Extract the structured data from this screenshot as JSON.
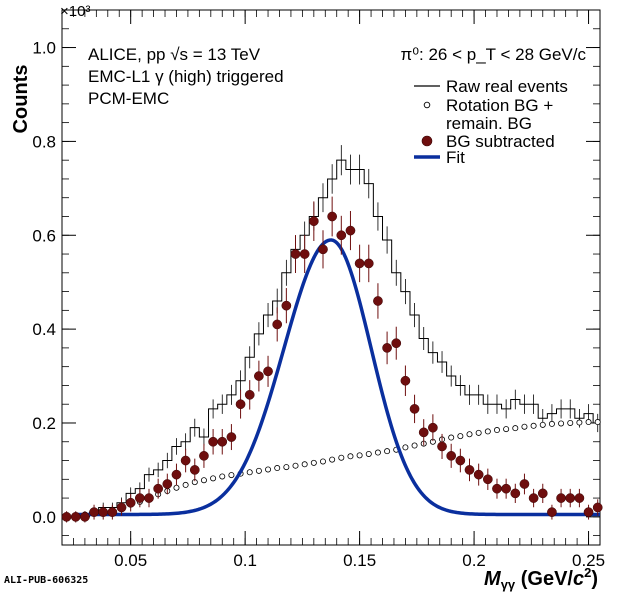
{
  "chart_data": {
    "type": "line",
    "xlabel": "M_γγ (GeV/c²)",
    "ylabel": "Counts",
    "y_multiplier": "×10³",
    "xlim": [
      0.02,
      0.255
    ],
    "ylim": [
      -0.06,
      1.08
    ],
    "x_ticks": [
      "0.05",
      "0.1",
      "0.15",
      "0.2",
      "0.25"
    ],
    "y_ticks": [
      "0.0",
      "0.2",
      "0.4",
      "0.6",
      "0.8",
      "1.0"
    ],
    "annotations": {
      "experiment": "ALICE, pp  √s = 13 TeV",
      "trigger": "EMC-L1 γ (high) triggered",
      "method": "PCM-EMC",
      "pt_range": "π⁰:  26 < p_T <  28 GeV/c"
    },
    "legend": {
      "position": "top-right",
      "entries": [
        {
          "label": "Raw real events",
          "style": "line"
        },
        {
          "label": "Rotation BG +",
          "label2": "remain. BG",
          "style": "open-circle"
        },
        {
          "label": "BG subtracted",
          "style": "filled-circle"
        },
        {
          "label": "Fit",
          "style": "thick-line"
        }
      ]
    },
    "bin_width": 0.004,
    "series": [
      {
        "name": "Raw real events",
        "x": [
          0.022,
          0.026,
          0.03,
          0.034,
          0.038,
          0.042,
          0.046,
          0.05,
          0.054,
          0.058,
          0.062,
          0.066,
          0.07,
          0.074,
          0.078,
          0.082,
          0.086,
          0.09,
          0.094,
          0.098,
          0.102,
          0.106,
          0.11,
          0.114,
          0.118,
          0.122,
          0.126,
          0.13,
          0.134,
          0.138,
          0.142,
          0.146,
          0.15,
          0.154,
          0.158,
          0.162,
          0.166,
          0.17,
          0.174,
          0.178,
          0.182,
          0.186,
          0.19,
          0.194,
          0.198,
          0.202,
          0.206,
          0.21,
          0.214,
          0.218,
          0.222,
          0.226,
          0.23,
          0.234,
          0.238,
          0.242,
          0.246,
          0.25,
          0.254
        ],
        "values": [
          0.0,
          0.0,
          0.0,
          0.01,
          0.02,
          0.02,
          0.03,
          0.05,
          0.06,
          0.09,
          0.1,
          0.12,
          0.15,
          0.16,
          0.19,
          0.17,
          0.23,
          0.24,
          0.26,
          0.29,
          0.34,
          0.39,
          0.43,
          0.46,
          0.52,
          0.57,
          0.6,
          0.64,
          0.68,
          0.72,
          0.76,
          0.74,
          0.74,
          0.71,
          0.64,
          0.59,
          0.52,
          0.48,
          0.43,
          0.38,
          0.35,
          0.33,
          0.3,
          0.28,
          0.26,
          0.26,
          0.24,
          0.24,
          0.23,
          0.25,
          0.24,
          0.24,
          0.21,
          0.22,
          0.23,
          0.23,
          0.21,
          0.22,
          0.2
        ]
      },
      {
        "name": "Rotation BG + remain. BG",
        "x": [
          0.022,
          0.026,
          0.03,
          0.034,
          0.038,
          0.042,
          0.046,
          0.05,
          0.054,
          0.058,
          0.062,
          0.066,
          0.07,
          0.074,
          0.078,
          0.082,
          0.086,
          0.09,
          0.094,
          0.098,
          0.102,
          0.106,
          0.11,
          0.114,
          0.118,
          0.122,
          0.126,
          0.13,
          0.134,
          0.138,
          0.142,
          0.146,
          0.15,
          0.154,
          0.158,
          0.162,
          0.166,
          0.17,
          0.174,
          0.178,
          0.182,
          0.186,
          0.19,
          0.194,
          0.198,
          0.202,
          0.206,
          0.21,
          0.214,
          0.218,
          0.222,
          0.226,
          0.23,
          0.234,
          0.238,
          0.242,
          0.246,
          0.25,
          0.254
        ],
        "values": [
          0.0,
          0.002,
          0.005,
          0.008,
          0.011,
          0.015,
          0.02,
          0.026,
          0.032,
          0.04,
          0.048,
          0.055,
          0.062,
          0.068,
          0.074,
          0.078,
          0.082,
          0.086,
          0.089,
          0.092,
          0.095,
          0.098,
          0.101,
          0.104,
          0.106,
          0.109,
          0.112,
          0.115,
          0.118,
          0.122,
          0.126,
          0.129,
          0.131,
          0.134,
          0.137,
          0.14,
          0.143,
          0.148,
          0.152,
          0.156,
          0.16,
          0.165,
          0.169,
          0.172,
          0.176,
          0.179,
          0.182,
          0.185,
          0.187,
          0.189,
          0.192,
          0.194,
          0.196,
          0.198,
          0.199,
          0.2,
          0.201,
          0.202,
          0.202
        ]
      },
      {
        "name": "BG subtracted",
        "x": [
          0.022,
          0.026,
          0.03,
          0.034,
          0.038,
          0.042,
          0.046,
          0.05,
          0.054,
          0.058,
          0.062,
          0.066,
          0.07,
          0.074,
          0.078,
          0.082,
          0.086,
          0.09,
          0.094,
          0.098,
          0.102,
          0.106,
          0.11,
          0.114,
          0.118,
          0.122,
          0.126,
          0.13,
          0.134,
          0.138,
          0.142,
          0.146,
          0.15,
          0.154,
          0.158,
          0.162,
          0.166,
          0.17,
          0.174,
          0.178,
          0.182,
          0.186,
          0.19,
          0.194,
          0.198,
          0.202,
          0.206,
          0.21,
          0.214,
          0.218,
          0.222,
          0.226,
          0.23,
          0.234,
          0.238,
          0.242,
          0.246,
          0.25,
          0.254
        ],
        "values": [
          0.0,
          0.0,
          0.0,
          0.01,
          0.01,
          0.01,
          0.02,
          0.03,
          0.04,
          0.04,
          0.06,
          0.07,
          0.09,
          0.12,
          0.1,
          0.13,
          0.16,
          0.16,
          0.17,
          0.24,
          0.26,
          0.3,
          0.31,
          0.41,
          0.45,
          0.56,
          0.56,
          0.63,
          0.57,
          0.64,
          0.6,
          0.61,
          0.54,
          0.54,
          0.46,
          0.36,
          0.37,
          0.29,
          0.23,
          0.18,
          0.19,
          0.15,
          0.13,
          0.12,
          0.1,
          0.09,
          0.08,
          0.06,
          0.06,
          0.05,
          0.07,
          0.04,
          0.05,
          0.01,
          0.04,
          0.04,
          0.04,
          0.01,
          0.02
        ]
      },
      {
        "name": "Fit",
        "peak_mean": 0.1375,
        "peak_sigma_left": 0.0205,
        "peak_sigma_right": 0.0175,
        "peak_amplitude": 0.585,
        "tail_start": 0.025,
        "tail_value": 0.005
      }
    ]
  },
  "footer": "ALI-PUB-606325"
}
